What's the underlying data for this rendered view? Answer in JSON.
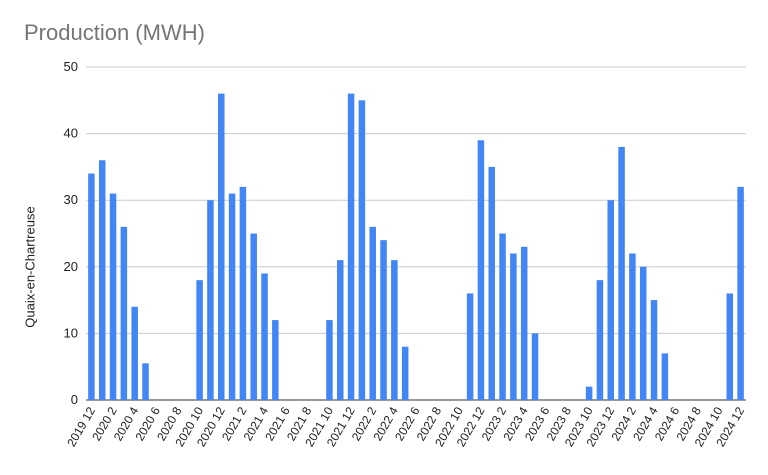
{
  "chart_data": {
    "type": "bar",
    "title": "Production (MWH)",
    "xlabel": "",
    "ylabel": "Quaix-en-Chartreuse",
    "ylim": [
      0,
      50
    ],
    "yticks": [
      0,
      10,
      20,
      30,
      40,
      50
    ],
    "grid": true,
    "bar_color": "#4285f4",
    "categories": [
      "2019 12",
      "2020 1",
      "2020 2",
      "2020 3",
      "2020 4",
      "2020 5",
      "2020 6",
      "2020 7",
      "2020 8",
      "2020 9",
      "2020 10",
      "2020 11",
      "2020 12",
      "2021 1",
      "2021 2",
      "2021 3",
      "2021 4",
      "2021 5",
      "2021 6",
      "2021 7",
      "2021 8",
      "2021 9",
      "2021 10",
      "2021 11",
      "2021 12",
      "2022 1",
      "2022 2",
      "2022 3",
      "2022 4",
      "2022 5",
      "2022 6",
      "2022 7",
      "2022 8",
      "2022 9",
      "2022 10",
      "2022 11",
      "2022 12",
      "2023 1",
      "2023 2",
      "2023 3",
      "2023 4",
      "2023 5",
      "2023 6",
      "2023 7",
      "2023 8",
      "2023 9",
      "2023 10",
      "2023 11",
      "2023 12",
      "2024 1",
      "2024 2",
      "2024 3",
      "2024 4",
      "2024 5",
      "2024 6",
      "2024 7",
      "2024 8",
      "2024 9",
      "2024 10",
      "2024 11",
      "2024 12"
    ],
    "values": [
      34,
      36,
      31,
      26,
      14,
      5.5,
      0,
      0,
      0,
      0,
      18,
      30,
      46,
      31,
      32,
      25,
      19,
      12,
      0,
      0,
      0,
      0,
      12,
      21,
      46,
      45,
      26,
      24,
      21,
      8,
      0,
      0,
      0,
      0,
      0,
      16,
      39,
      35,
      25,
      22,
      23,
      10,
      0,
      0,
      0,
      0,
      2,
      18,
      30,
      38,
      22,
      20,
      15,
      7,
      0,
      0,
      0,
      0,
      0,
      16,
      32
    ],
    "xtick_labels": [
      "2019 12",
      "2020 2",
      "2020 4",
      "2020 6",
      "2020 8",
      "2020 10",
      "2020 12",
      "2021 2",
      "2021 4",
      "2021 6",
      "2021 8",
      "2021 10",
      "2021 12",
      "2022 2",
      "2022 4",
      "2022 6",
      "2022 8",
      "2022 10",
      "2022 12",
      "2023 2",
      "2023 4",
      "2023 6",
      "2023 8",
      "2023 10",
      "2023 12",
      "2024 2",
      "2024 4",
      "2024 6",
      "2024 8",
      "2024 10",
      "2024 12"
    ]
  }
}
